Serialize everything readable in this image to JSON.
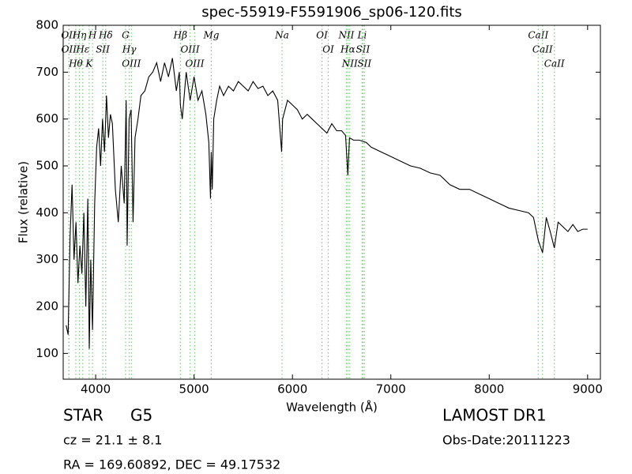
{
  "chart_data": {
    "type": "line",
    "title": "spec-55919-F5591906_sp06-120.fits",
    "xlabel": "Wavelength (Å)",
    "ylabel": "Flux (relative)",
    "x": [
      3700,
      3720,
      3740,
      3760,
      3780,
      3800,
      3820,
      3840,
      3860,
      3880,
      3900,
      3920,
      3935,
      3950,
      3968,
      3990,
      4010,
      4030,
      4050,
      4070,
      4090,
      4110,
      4130,
      4150,
      4170,
      4200,
      4230,
      4260,
      4290,
      4310,
      4320,
      4340,
      4360,
      4380,
      4400,
      4430,
      4460,
      4500,
      4540,
      4580,
      4620,
      4660,
      4700,
      4740,
      4780,
      4820,
      4850,
      4861,
      4880,
      4920,
      4960,
      5000,
      5040,
      5080,
      5120,
      5150,
      5167,
      5175,
      5185,
      5200,
      5230,
      5260,
      5300,
      5350,
      5400,
      5450,
      5500,
      5550,
      5600,
      5650,
      5700,
      5750,
      5800,
      5850,
      5890,
      5900,
      5950,
      6000,
      6050,
      6100,
      6150,
      6200,
      6250,
      6300,
      6350,
      6400,
      6450,
      6500,
      6540,
      6563,
      6580,
      6620,
      6680,
      6750,
      6800,
      6900,
      7000,
      7100,
      7200,
      7300,
      7400,
      7500,
      7600,
      7700,
      7800,
      7900,
      8000,
      8100,
      8200,
      8300,
      8400,
      8450,
      8500,
      8542,
      8580,
      8620,
      8662,
      8700,
      8750,
      8800,
      8850,
      8900,
      8950,
      9000
    ],
    "series": [
      {
        "color": "#000000",
        "values": [
          160,
          140,
          350,
          460,
          300,
          380,
          250,
          330,
          270,
          400,
          200,
          430,
          110,
          300,
          150,
          420,
          540,
          580,
          500,
          600,
          530,
          650,
          560,
          610,
          590,
          450,
          380,
          500,
          420,
          640,
          330,
          600,
          620,
          380,
          560,
          600,
          650,
          660,
          690,
          700,
          720,
          680,
          720,
          690,
          730,
          660,
          700,
          630,
          600,
          700,
          640,
          690,
          640,
          660,
          610,
          550,
          430,
          530,
          450,
          600,
          640,
          670,
          650,
          670,
          660,
          680,
          670,
          660,
          680,
          665,
          670,
          650,
          660,
          640,
          530,
          600,
          640,
          630,
          620,
          600,
          610,
          600,
          590,
          580,
          570,
          590,
          575,
          575,
          565,
          480,
          560,
          555,
          555,
          550,
          540,
          530,
          520,
          510,
          500,
          495,
          485,
          480,
          460,
          450,
          450,
          440,
          430,
          420,
          410,
          405,
          400,
          390,
          340,
          315,
          390,
          360,
          325,
          380,
          370,
          360,
          375,
          360,
          365,
          365
        ]
      }
    ],
    "xlim": [
      3670,
      9130
    ],
    "ylim": [
      45,
      800
    ],
    "xticks": [
      4000,
      5000,
      6000,
      7000,
      8000,
      9000
    ],
    "yticks": [
      100,
      200,
      300,
      400,
      500,
      600,
      700,
      800
    ],
    "line_color": "#7fc97f",
    "lines": [
      {
        "wavelength": 3727,
        "label": "OII"
      },
      {
        "wavelength": 3729,
        "label": "OII"
      },
      {
        "wavelength": 3798,
        "label": "Hθ"
      },
      {
        "wavelength": 3835,
        "label": "Hη"
      },
      {
        "wavelength": 3869,
        "label": "Hε"
      },
      {
        "wavelength": 3934,
        "label": "K"
      },
      {
        "wavelength": 3968,
        "label": "H"
      },
      {
        "wavelength": 4072,
        "label": "SII"
      },
      {
        "wavelength": 4102,
        "label": "Hδ"
      },
      {
        "wavelength": 4304,
        "label": "G"
      },
      {
        "wavelength": 4341,
        "label": "Hγ"
      },
      {
        "wavelength": 4363,
        "label": "OIII"
      },
      {
        "wavelength": 4861,
        "label": "Hβ"
      },
      {
        "wavelength": 4959,
        "label": "OIII"
      },
      {
        "wavelength": 5007,
        "label": "OIII"
      },
      {
        "wavelength": 5175,
        "label": "Mg"
      },
      {
        "wavelength": 5894,
        "label": "Na"
      },
      {
        "wavelength": 6300,
        "label": "OI"
      },
      {
        "wavelength": 6364,
        "label": "OI"
      },
      {
        "wavelength": 6548,
        "label": "NII"
      },
      {
        "wavelength": 6563,
        "label": "Hα"
      },
      {
        "wavelength": 6583,
        "label": "NII"
      },
      {
        "wavelength": 6708,
        "label": "Li"
      },
      {
        "wavelength": 6716,
        "label": "SII"
      },
      {
        "wavelength": 6731,
        "label": "SII"
      },
      {
        "wavelength": 8498,
        "label": "CaII"
      },
      {
        "wavelength": 8542,
        "label": "CaII"
      },
      {
        "wavelength": 8662,
        "label": "CaII"
      }
    ]
  },
  "info": {
    "object_class": "STAR",
    "subclass": "G5",
    "redshift": "cz = 21.1 ± 8.1",
    "coords": "RA = 169.60892, DEC = 49.17532",
    "survey": "LAMOST DR1",
    "obs_date": "Obs-Date:20111223"
  }
}
